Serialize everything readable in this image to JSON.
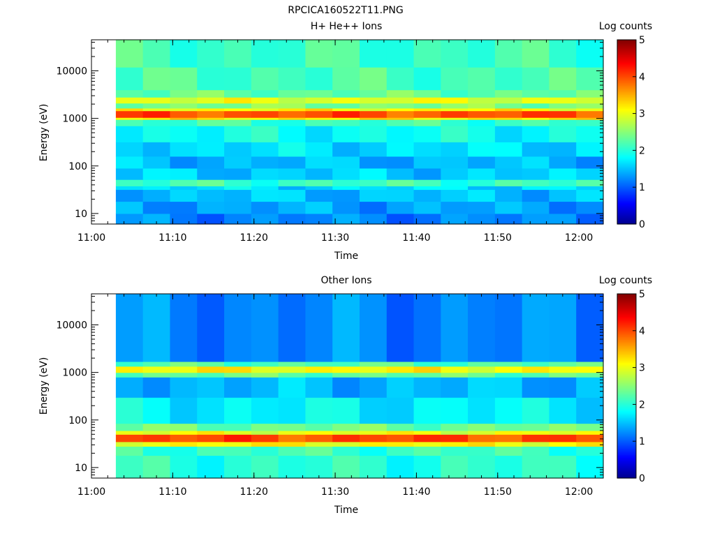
{
  "figure_title": "RPCICA160522T11.PNG",
  "colormap_stops": [
    [
      0.0,
      "#00008f"
    ],
    [
      0.11,
      "#0000ff"
    ],
    [
      0.36,
      "#00ffff"
    ],
    [
      0.62,
      "#ffff00"
    ],
    [
      0.87,
      "#ff0000"
    ],
    [
      1.0,
      "#800000"
    ]
  ],
  "chart_data": [
    {
      "type": "heatmap",
      "title": "H+ He++ Ions",
      "xlabel": "Time",
      "ylabel": "Energy (eV)",
      "y_scale": "log",
      "ylim": [
        6,
        45000
      ],
      "xlim": [
        "11:00",
        "12:03"
      ],
      "x_ticks": [
        "11:00",
        "11:10",
        "11:20",
        "11:30",
        "11:40",
        "11:50",
        "12:00"
      ],
      "y_ticks": [
        {
          "value": 10,
          "label": "10"
        },
        {
          "value": 100,
          "label": "100"
        },
        {
          "value": 1000,
          "label": "1000"
        },
        {
          "value": 10000,
          "label": "10000"
        }
      ],
      "colorbar": {
        "label": "Log counts",
        "min": 0,
        "max": 5,
        "ticks": [
          "0",
          "1",
          "2",
          "3",
          "4",
          "5"
        ]
      },
      "time_start": "11:03",
      "time_end": "12:03",
      "time_bins": 18,
      "bands": [
        {
          "e_min": 6,
          "e_max": 10,
          "log_counts": 1.2
        },
        {
          "e_min": 10,
          "e_max": 18,
          "log_counts": 1.35
        },
        {
          "e_min": 18,
          "e_max": 32,
          "log_counts": 1.5
        },
        {
          "e_min": 32,
          "e_max": 38,
          "log_counts": 1.65
        },
        {
          "e_min": 38,
          "e_max": 52,
          "log_counts": 2.1
        },
        {
          "e_min": 52,
          "e_max": 90,
          "log_counts": 1.55
        },
        {
          "e_min": 90,
          "e_max": 160,
          "log_counts": 1.45
        },
        {
          "e_min": 160,
          "e_max": 320,
          "log_counts": 1.65
        },
        {
          "e_min": 320,
          "e_max": 700,
          "log_counts": 1.85
        },
        {
          "e_min": 700,
          "e_max": 950,
          "log_counts": 2.1
        },
        {
          "e_min": 950,
          "e_max": 1050,
          "log_counts": 3.2
        },
        {
          "e_min": 1050,
          "e_max": 1450,
          "log_counts": 3.95
        },
        {
          "e_min": 1450,
          "e_max": 1650,
          "log_counts": 3.1
        },
        {
          "e_min": 1650,
          "e_max": 2100,
          "log_counts": 2.45
        },
        {
          "e_min": 2100,
          "e_max": 2800,
          "log_counts": 2.95
        },
        {
          "e_min": 2800,
          "e_max": 4000,
          "log_counts": 2.3
        },
        {
          "e_min": 4000,
          "e_max": 12000,
          "log_counts": 2.15
        },
        {
          "e_min": 12000,
          "e_max": 45000,
          "log_counts": 2.1
        }
      ]
    },
    {
      "type": "heatmap",
      "title": "Other Ions",
      "xlabel": "Time",
      "ylabel": "Energy (eV)",
      "y_scale": "log",
      "ylim": [
        6,
        45000
      ],
      "xlim": [
        "11:00",
        "12:03"
      ],
      "x_ticks": [
        "11:00",
        "11:10",
        "11:20",
        "11:30",
        "11:40",
        "11:50",
        "12:00"
      ],
      "y_ticks": [
        {
          "value": 10,
          "label": "10"
        },
        {
          "value": 100,
          "label": "100"
        },
        {
          "value": 1000,
          "label": "1000"
        },
        {
          "value": 10000,
          "label": "10000"
        }
      ],
      "colorbar": {
        "label": "Log counts",
        "min": 0,
        "max": 5,
        "ticks": [
          "0",
          "1",
          "2",
          "3",
          "4",
          "5"
        ]
      },
      "time_start": "11:03",
      "time_end": "12:03",
      "time_bins": 18,
      "bands": [
        {
          "e_min": 6,
          "e_max": 18,
          "log_counts": 2.0
        },
        {
          "e_min": 18,
          "e_max": 28,
          "log_counts": 2.1
        },
        {
          "e_min": 28,
          "e_max": 35,
          "log_counts": 3.1
        },
        {
          "e_min": 35,
          "e_max": 50,
          "log_counts": 4.0
        },
        {
          "e_min": 50,
          "e_max": 60,
          "log_counts": 3.0
        },
        {
          "e_min": 60,
          "e_max": 85,
          "log_counts": 2.35
        },
        {
          "e_min": 85,
          "e_max": 300,
          "log_counts": 1.75
        },
        {
          "e_min": 300,
          "e_max": 800,
          "log_counts": 1.45
        },
        {
          "e_min": 800,
          "e_max": 1000,
          "log_counts": 2.3
        },
        {
          "e_min": 1000,
          "e_max": 1350,
          "log_counts": 3.1
        },
        {
          "e_min": 1350,
          "e_max": 1700,
          "log_counts": 2.2
        },
        {
          "e_min": 1700,
          "e_max": 45000,
          "log_counts": 1.2
        }
      ]
    }
  ]
}
